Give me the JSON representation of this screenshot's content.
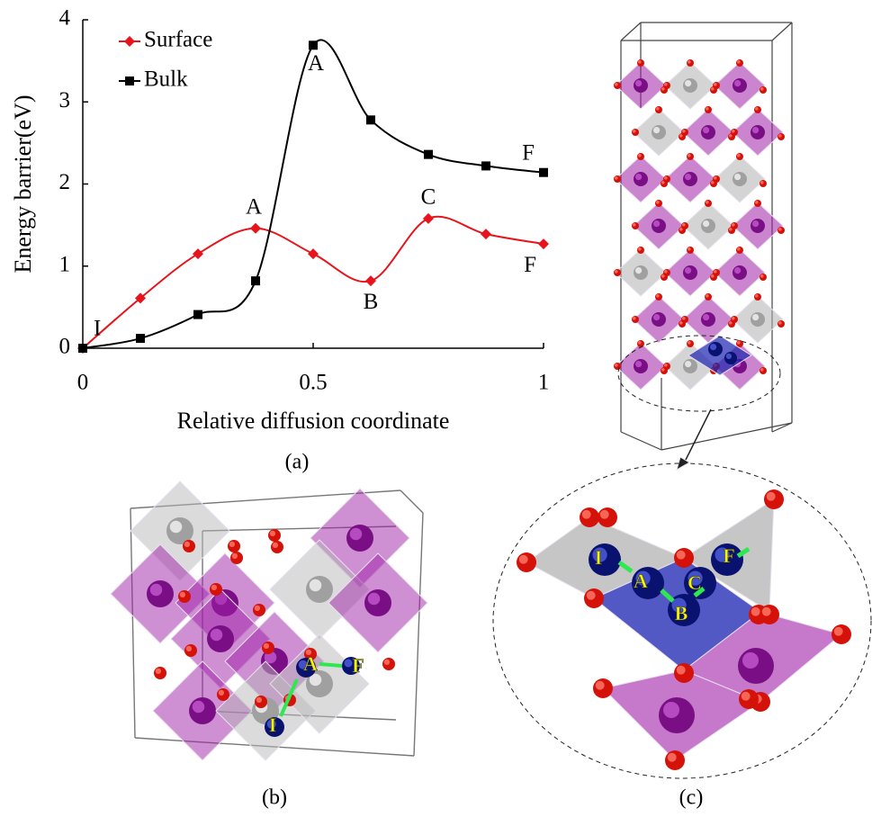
{
  "chart_data": {
    "type": "line",
    "xlabel": "Relative diffusion coordinate",
    "ylabel": "Energy barrier(eV)",
    "x": [
      0,
      0.125,
      0.25,
      0.375,
      0.5,
      0.625,
      0.75,
      0.875,
      1
    ],
    "series": [
      {
        "name": "Surface",
        "color": "#e8141c",
        "marker": "diamond",
        "values": [
          0,
          0.61,
          1.15,
          1.46,
          1.15,
          0.82,
          1.58,
          1.39,
          1.27
        ],
        "point_labels": [
          "I",
          null,
          null,
          "A",
          null,
          "B",
          "C",
          null,
          "F"
        ]
      },
      {
        "name": "Bulk",
        "color": "#000000",
        "marker": "square",
        "values": [
          0,
          0.12,
          0.41,
          0.82,
          3.69,
          2.78,
          2.36,
          2.22,
          2.14
        ],
        "point_labels": [
          null,
          null,
          null,
          null,
          "A",
          null,
          null,
          null,
          "F"
        ]
      }
    ],
    "xlim": [
      0,
      1
    ],
    "xticks": [
      0,
      0.5,
      1
    ],
    "ylim": [
      0,
      4
    ],
    "yticks": [
      0,
      1,
      2,
      3,
      4
    ],
    "smooth": true,
    "legend": "upper left"
  },
  "panels": {
    "a": {
      "label": "(a)"
    },
    "b": {
      "label": "(b)",
      "site_labels": [
        "I",
        "A",
        "F"
      ]
    },
    "c": {
      "label": "(c)",
      "site_labels": [
        "I",
        "A",
        "B",
        "C",
        "F"
      ]
    }
  }
}
